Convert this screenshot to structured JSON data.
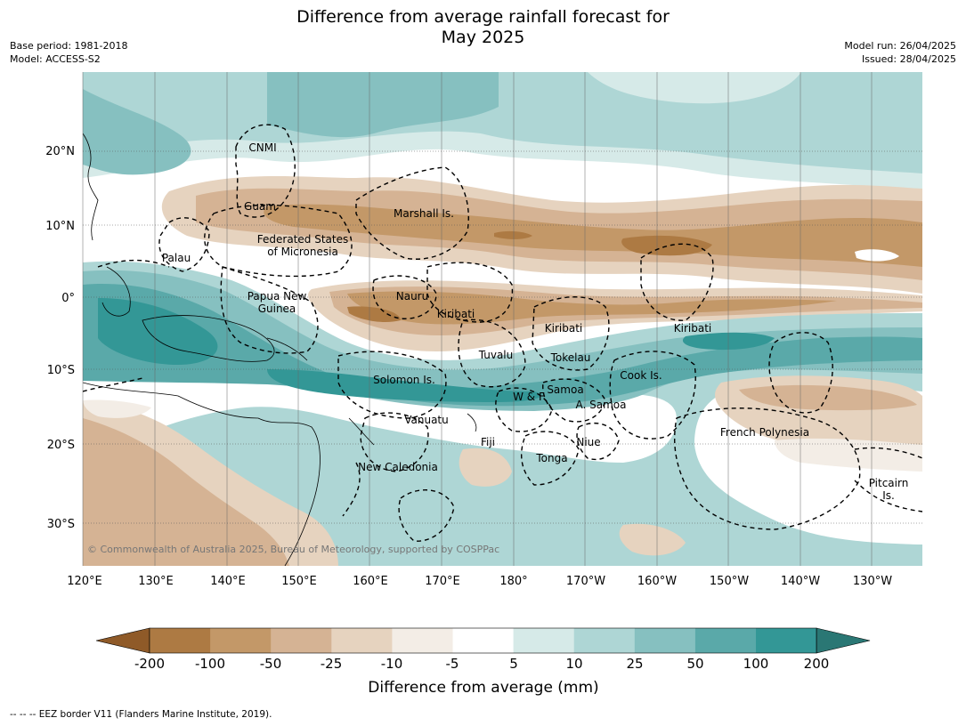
{
  "title": {
    "line1": "Difference from average rainfall forecast for",
    "line2": "May 2025"
  },
  "meta_left": {
    "base_period": "Base period: 1981-2018",
    "model": "Model: ACCESS-S2"
  },
  "meta_right": {
    "model_run": "Model run: 26/04/2025",
    "issued": "Issued: 28/04/2025"
  },
  "map": {
    "lon_labels": [
      "120°E",
      "130°E",
      "140°E",
      "150°E",
      "160°E",
      "170°E",
      "180°",
      "170°W",
      "160°W",
      "150°W",
      "140°W",
      "130°W"
    ],
    "lat_labels": [
      "20°N",
      "10°N",
      "0°",
      "10°S",
      "20°S",
      "30°S"
    ],
    "regions": [
      "CNMI",
      "Guam",
      "Marshall Is.",
      "Federated States",
      "of Micronesia",
      "Palau",
      "Papua New",
      "Guinea",
      "Nauru",
      "Kiribati",
      "Kiribati",
      "Kiribati",
      "Tuvalu",
      "Tokelau",
      "Cook Is.",
      "Solomon Is.",
      "Samoa",
      "W & F",
      "A. Samoa",
      "Vanuatu",
      "Fiji",
      "Niue",
      "Tonga",
      "French Polynesia",
      "New Caledonia",
      "Pitcairn",
      "Is."
    ],
    "copyright": "© Commonwealth of Australia 2025, Bureau of Meteorology, supported by COSPPac"
  },
  "colorbar": {
    "ticks": [
      "-200",
      "-100",
      "-50",
      "-25",
      "-10",
      "-5",
      "5",
      "10",
      "25",
      "50",
      "100",
      "200"
    ],
    "colors": [
      "#8f5a28",
      "#ad7a43",
      "#c39868",
      "#d5b394",
      "#e6d3bf",
      "#f3ede6",
      "#ffffff",
      "#d6eae8",
      "#aed6d5",
      "#86c0c0",
      "#5aa9a9",
      "#339796",
      "#2a7774"
    ],
    "label": "Difference from average (mm)"
  },
  "footer": "--  --  -- EEZ border V11 (Flanders Marine Institute, 2019)."
}
